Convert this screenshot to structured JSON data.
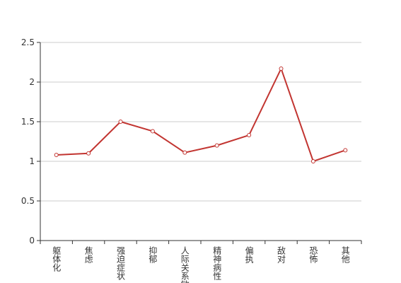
{
  "chart_data": {
    "type": "line",
    "categories": [
      "躯体化",
      "焦虑",
      "强迫症状",
      "抑郁",
      "人际关系敏感",
      "精神病性",
      "偏执",
      "敌对",
      "恐怖",
      "其他"
    ],
    "values": [
      1.08,
      1.1,
      1.5,
      1.38,
      1.11,
      1.2,
      1.33,
      2.17,
      1.0,
      1.14
    ],
    "color": "#c23531",
    "ylim": [
      0,
      2.5
    ],
    "yticks": [
      0,
      0.5,
      1,
      1.5,
      2,
      2.5
    ],
    "grid": true
  }
}
